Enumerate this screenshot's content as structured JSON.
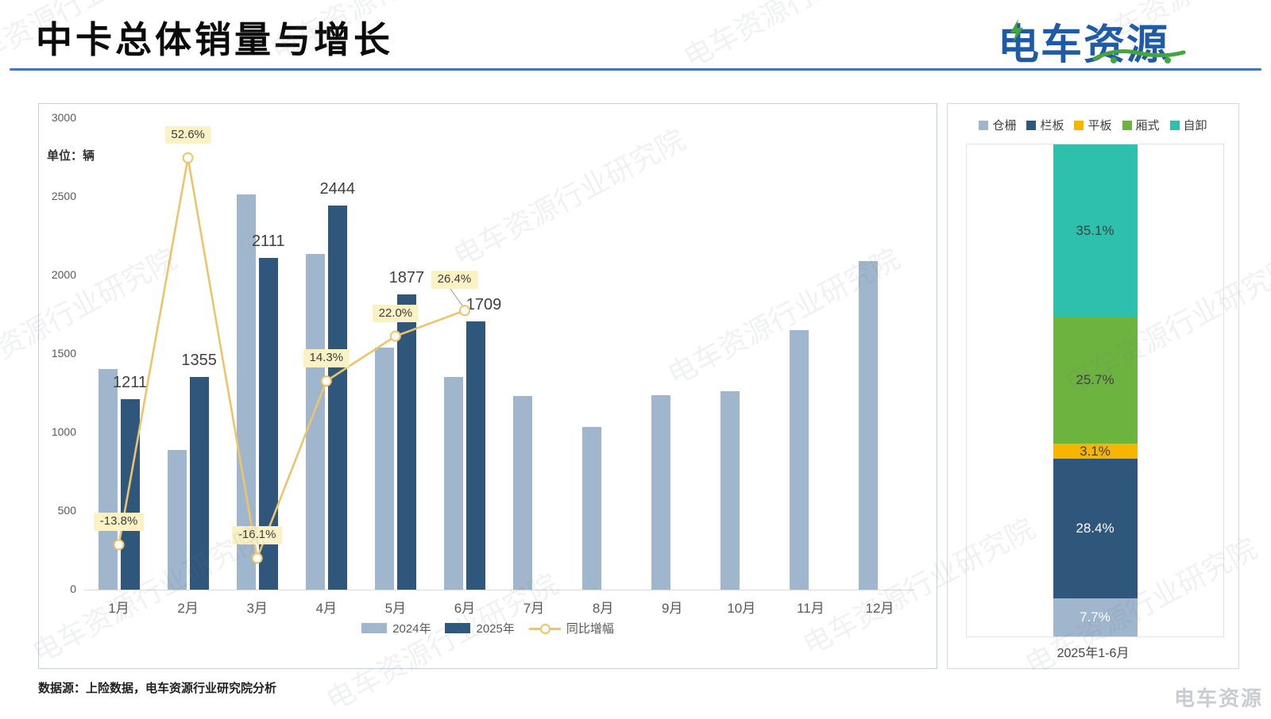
{
  "page": {
    "title": "中卡总体销量与增长",
    "footer": "数据源：上险数据，电车资源行业研究院分析",
    "watermark": "电车资源行业研究院",
    "watermark_corner": "电车资源"
  },
  "header": {
    "logo_text": "电车资源",
    "rule_color": "#4472c4",
    "logo_blue": "#1e5aa5",
    "logo_green": "#44a43e"
  },
  "chart_data": [
    {
      "type": "bar",
      "unit_label": "单位：辆",
      "categories": [
        "1月",
        "2月",
        "3月",
        "4月",
        "5月",
        "6月",
        "7月",
        "8月",
        "9月",
        "10月",
        "11月",
        "12月"
      ],
      "series": [
        {
          "name": "2024年",
          "color": "#a0b6cd",
          "values": [
            1405,
            888,
            2516,
            2138,
            1538,
            1352,
            1232,
            1035,
            1235,
            1262,
            1650,
            2090
          ]
        },
        {
          "name": "2025年",
          "color": "#2f577c",
          "values": [
            1211,
            1355,
            2111,
            2444,
            1877,
            1709,
            null,
            null,
            null,
            null,
            null,
            null
          ],
          "data_labels": [
            "1211",
            "1355",
            "2111",
            "2444",
            "1877",
            "1709"
          ]
        }
      ],
      "line_series": {
        "name": "同比增幅",
        "color": "#edc46a",
        "values_pct": [
          -13.8,
          52.6,
          -16.1,
          14.3,
          22.0,
          26.4
        ],
        "labels": [
          "-13.8%",
          "52.6%",
          "-16.1%",
          "14.3%",
          "22.0%",
          "26.4%"
        ],
        "label_bg": "#faf2c4"
      },
      "ylim": [
        0,
        3000
      ],
      "yticks": [
        "0",
        "500",
        "1000",
        "1500",
        "2000",
        "2500",
        "3000"
      ],
      "growth_axis": {
        "min": -21.5,
        "max": 59.4
      },
      "legend_position": "bottom",
      "grid": false
    },
    {
      "type": "stacked_bar",
      "category": "2025年1-6月",
      "segments": [
        {
          "name": "仓栅",
          "pct": 7.7,
          "label": "7.7%",
          "color": "#a0b6cd",
          "label_color": "#ffffff"
        },
        {
          "name": "栏板",
          "pct": 28.4,
          "label": "28.4%",
          "color": "#2f577c",
          "label_color": "#ffffff"
        },
        {
          "name": "平板",
          "pct": 3.1,
          "label": "3.1%",
          "color": "#f7b500",
          "label_color": "#404040"
        },
        {
          "name": "厢式",
          "pct": 25.7,
          "label": "25.7%",
          "color": "#6cb33f",
          "label_color": "#404040"
        },
        {
          "name": "自卸",
          "pct": 35.1,
          "label": "35.1%",
          "color": "#2fbfad",
          "label_color": "#404040"
        }
      ],
      "legend_position": "top",
      "ylim_pct": [
        0,
        100
      ]
    }
  ]
}
